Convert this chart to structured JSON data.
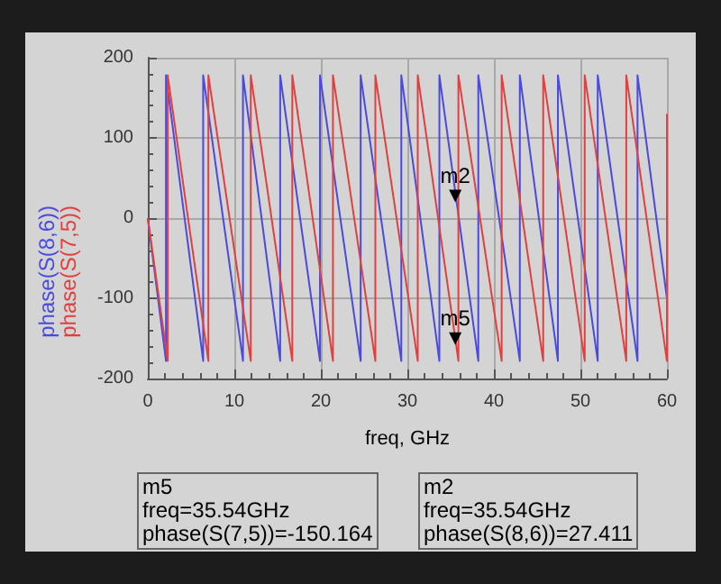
{
  "chart_data": {
    "type": "line",
    "xlabel": "freq, GHz",
    "series": [
      {
        "name": "phase(S(8,6))",
        "color": "#4a4ae0",
        "x": [
          0,
          2.1,
          2.1,
          6.4,
          6.4,
          11.0,
          11.0,
          15.3,
          15.3,
          19.9,
          19.9,
          24.6,
          24.6,
          29.3,
          29.3,
          33.7,
          33.7,
          38.2,
          38.2,
          43.0,
          43.0,
          47.4,
          47.4,
          52.0,
          52.0,
          56.6,
          56.6,
          60
        ],
        "values": [
          0,
          -178,
          178,
          -178,
          178,
          -178,
          178,
          -178,
          178,
          -178,
          178,
          -178,
          178,
          -178,
          178,
          -178,
          178,
          -178,
          178,
          -178,
          178,
          -178,
          178,
          -178,
          178,
          -178,
          178,
          -100
        ]
      },
      {
        "name": "phase(S(7,5))",
        "color": "#e04040",
        "x": [
          0,
          2.3,
          2.3,
          7.0,
          7.0,
          11.9,
          11.9,
          16.7,
          16.7,
          21.4,
          21.4,
          26.3,
          26.3,
          31.2,
          31.2,
          35.9,
          35.9,
          40.9,
          40.9,
          45.7,
          45.7,
          50.5,
          50.5,
          55.3,
          55.3,
          60,
          60
        ],
        "values": [
          0,
          -178,
          178,
          -178,
          178,
          -178,
          178,
          -178,
          178,
          -178,
          178,
          -178,
          178,
          -178,
          178,
          -178,
          178,
          -178,
          178,
          -178,
          178,
          -178,
          178,
          -178,
          178,
          -178,
          130
        ]
      }
    ],
    "xlim": [
      0,
      60
    ],
    "xticks": [
      0,
      10,
      20,
      30,
      40,
      50,
      60
    ],
    "ylim": [
      -200,
      200
    ],
    "yticks": [
      -200,
      -100,
      0,
      100,
      200
    ],
    "grid": true,
    "legend": false,
    "marker": "none",
    "line_style": "solid",
    "annotations": [
      {
        "text": "m2",
        "x": 35.54,
        "y": 27.411
      },
      {
        "text": "m5",
        "x": 35.54,
        "y": -150.164
      },
      "m5\nfreq=35.54GHz\nphase(S(7,5))=-150.164",
      "m2\nfreq=35.54GHz\nphase(S(8,6))=27.411"
    ]
  }
}
